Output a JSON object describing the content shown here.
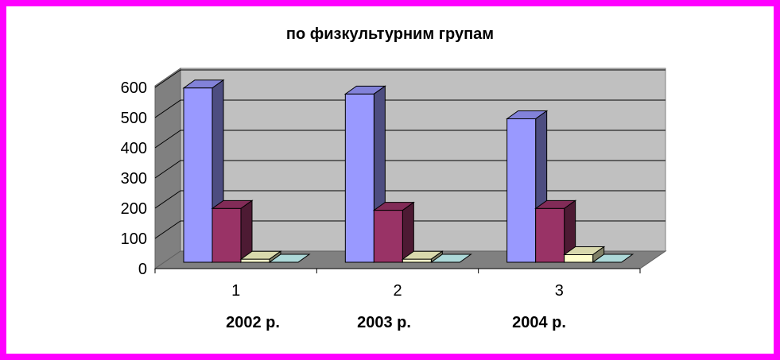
{
  "chart_data": {
    "type": "bar",
    "title": "по физкультурним групам",
    "categories": [
      "1",
      "2",
      "3"
    ],
    "category_years": [
      "2002 р.",
      "2003 р.",
      "2004 р."
    ],
    "series": [
      {
        "values": [
          577,
          557,
          475
        ],
        "color": "#9999ff"
      },
      {
        "values": [
          178,
          172,
          178
        ],
        "color": "#993366"
      },
      {
        "values": [
          10,
          10,
          25
        ],
        "color": "#ffffcc"
      },
      {
        "values": [
          0,
          0,
          0
        ],
        "color": "#ccffff"
      }
    ],
    "yticks": [
      "0",
      "100",
      "200",
      "300",
      "400",
      "500",
      "600"
    ],
    "ylim": [
      0,
      600
    ],
    "grid": true,
    "style": "3d-column"
  }
}
